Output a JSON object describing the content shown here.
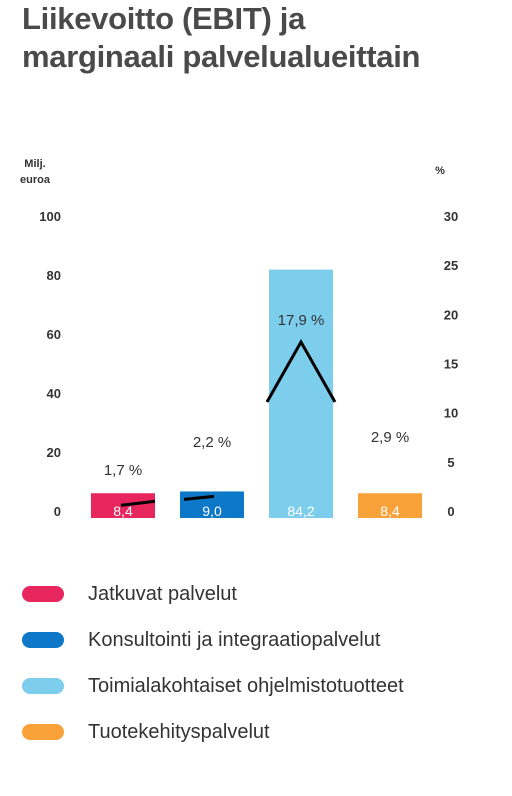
{
  "title_line1": "Liikevoitto (EBIT) ja",
  "title_line2": "marginaali palvelualueittain",
  "left_axis_label_line1": "Milj.",
  "left_axis_label_line2": "euroa",
  "right_axis_label": "%",
  "colors": {
    "jatkuvat": "#e8265e",
    "konsultointi": "#0d78c8",
    "toimiala": "#7dcdec",
    "tuotekehitys": "#f9a23a",
    "line": "#000000"
  },
  "chart_data": {
    "type": "bar",
    "categories": [
      "Jatkuvat palvelut",
      "Konsultointi ja integraatiopalvelut",
      "Toimialakohtaiset ohjelmistotuotteet",
      "Tuotekehityspalvelut"
    ],
    "series": [
      {
        "name": "Liikevoitto (EBIT)",
        "unit": "Milj. euroa",
        "axis": "left",
        "values": [
          8.4,
          9.0,
          84.2,
          8.4
        ],
        "labels": [
          "8,4",
          "9,0",
          "84,2",
          "8,4"
        ]
      },
      {
        "name": "marginaali",
        "unit": "%",
        "axis": "right",
        "values": [
          1.7,
          2.2,
          17.9,
          2.9
        ],
        "labels": [
          "1,7 %",
          "2,2 %",
          "17,9 %",
          "2,9 %"
        ]
      }
    ],
    "left_ylim": [
      0,
      100
    ],
    "left_ticks": [
      0,
      20,
      40,
      60,
      80,
      100
    ],
    "right_ylim": [
      0,
      30
    ],
    "right_ticks": [
      0,
      5,
      10,
      15,
      20,
      25,
      30
    ],
    "grid": false,
    "legend_position": "bottom"
  },
  "legend": [
    {
      "label": "Jatkuvat palvelut",
      "color_key": "jatkuvat"
    },
    {
      "label": "Konsultointi ja integraatiopalvelut",
      "color_key": "konsultointi"
    },
    {
      "label": "Toimialakohtaiset ohjelmistotuotteet",
      "color_key": "toimiala"
    },
    {
      "label": "Tuotekehityspalvelut",
      "color_key": "tuotekehitys"
    }
  ]
}
